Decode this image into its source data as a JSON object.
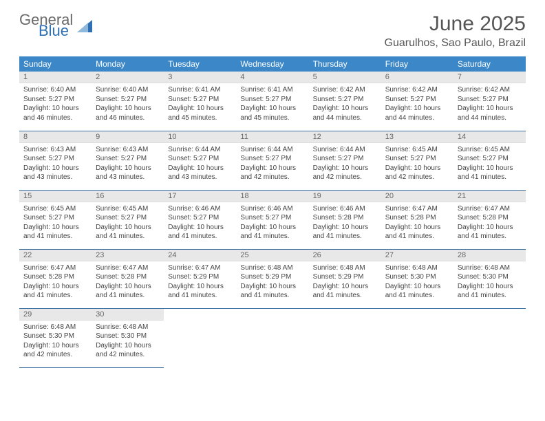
{
  "logo": {
    "text1": "General",
    "text2": "Blue"
  },
  "title": "June 2025",
  "location": "Guarulhos, Sao Paulo, Brazil",
  "colors": {
    "header_bg": "#3b87c8",
    "header_text": "#ffffff",
    "daynum_bg": "#e8e8e8",
    "border": "#3b6fa0",
    "logo_gray": "#6a6a6a",
    "logo_blue": "#2f6fb3"
  },
  "weekdays": [
    "Sunday",
    "Monday",
    "Tuesday",
    "Wednesday",
    "Thursday",
    "Friday",
    "Saturday"
  ],
  "labels": {
    "sunrise": "Sunrise:",
    "sunset": "Sunset:",
    "daylight_prefix": "Daylight:",
    "hours_word": "hours",
    "minutes_suffix": "minutes."
  },
  "days": [
    {
      "n": 1,
      "sunrise": "6:40 AM",
      "sunset": "5:27 PM",
      "dl_h": 10,
      "dl_m": 46
    },
    {
      "n": 2,
      "sunrise": "6:40 AM",
      "sunset": "5:27 PM",
      "dl_h": 10,
      "dl_m": 46
    },
    {
      "n": 3,
      "sunrise": "6:41 AM",
      "sunset": "5:27 PM",
      "dl_h": 10,
      "dl_m": 45
    },
    {
      "n": 4,
      "sunrise": "6:41 AM",
      "sunset": "5:27 PM",
      "dl_h": 10,
      "dl_m": 45
    },
    {
      "n": 5,
      "sunrise": "6:42 AM",
      "sunset": "5:27 PM",
      "dl_h": 10,
      "dl_m": 44
    },
    {
      "n": 6,
      "sunrise": "6:42 AM",
      "sunset": "5:27 PM",
      "dl_h": 10,
      "dl_m": 44
    },
    {
      "n": 7,
      "sunrise": "6:42 AM",
      "sunset": "5:27 PM",
      "dl_h": 10,
      "dl_m": 44
    },
    {
      "n": 8,
      "sunrise": "6:43 AM",
      "sunset": "5:27 PM",
      "dl_h": 10,
      "dl_m": 43
    },
    {
      "n": 9,
      "sunrise": "6:43 AM",
      "sunset": "5:27 PM",
      "dl_h": 10,
      "dl_m": 43
    },
    {
      "n": 10,
      "sunrise": "6:44 AM",
      "sunset": "5:27 PM",
      "dl_h": 10,
      "dl_m": 43
    },
    {
      "n": 11,
      "sunrise": "6:44 AM",
      "sunset": "5:27 PM",
      "dl_h": 10,
      "dl_m": 42
    },
    {
      "n": 12,
      "sunrise": "6:44 AM",
      "sunset": "5:27 PM",
      "dl_h": 10,
      "dl_m": 42
    },
    {
      "n": 13,
      "sunrise": "6:45 AM",
      "sunset": "5:27 PM",
      "dl_h": 10,
      "dl_m": 42
    },
    {
      "n": 14,
      "sunrise": "6:45 AM",
      "sunset": "5:27 PM",
      "dl_h": 10,
      "dl_m": 41
    },
    {
      "n": 15,
      "sunrise": "6:45 AM",
      "sunset": "5:27 PM",
      "dl_h": 10,
      "dl_m": 41
    },
    {
      "n": 16,
      "sunrise": "6:45 AM",
      "sunset": "5:27 PM",
      "dl_h": 10,
      "dl_m": 41
    },
    {
      "n": 17,
      "sunrise": "6:46 AM",
      "sunset": "5:27 PM",
      "dl_h": 10,
      "dl_m": 41
    },
    {
      "n": 18,
      "sunrise": "6:46 AM",
      "sunset": "5:27 PM",
      "dl_h": 10,
      "dl_m": 41
    },
    {
      "n": 19,
      "sunrise": "6:46 AM",
      "sunset": "5:28 PM",
      "dl_h": 10,
      "dl_m": 41
    },
    {
      "n": 20,
      "sunrise": "6:47 AM",
      "sunset": "5:28 PM",
      "dl_h": 10,
      "dl_m": 41
    },
    {
      "n": 21,
      "sunrise": "6:47 AM",
      "sunset": "5:28 PM",
      "dl_h": 10,
      "dl_m": 41
    },
    {
      "n": 22,
      "sunrise": "6:47 AM",
      "sunset": "5:28 PM",
      "dl_h": 10,
      "dl_m": 41
    },
    {
      "n": 23,
      "sunrise": "6:47 AM",
      "sunset": "5:28 PM",
      "dl_h": 10,
      "dl_m": 41
    },
    {
      "n": 24,
      "sunrise": "6:47 AM",
      "sunset": "5:29 PM",
      "dl_h": 10,
      "dl_m": 41
    },
    {
      "n": 25,
      "sunrise": "6:48 AM",
      "sunset": "5:29 PM",
      "dl_h": 10,
      "dl_m": 41
    },
    {
      "n": 26,
      "sunrise": "6:48 AM",
      "sunset": "5:29 PM",
      "dl_h": 10,
      "dl_m": 41
    },
    {
      "n": 27,
      "sunrise": "6:48 AM",
      "sunset": "5:30 PM",
      "dl_h": 10,
      "dl_m": 41
    },
    {
      "n": 28,
      "sunrise": "6:48 AM",
      "sunset": "5:30 PM",
      "dl_h": 10,
      "dl_m": 41
    },
    {
      "n": 29,
      "sunrise": "6:48 AM",
      "sunset": "5:30 PM",
      "dl_h": 10,
      "dl_m": 42
    },
    {
      "n": 30,
      "sunrise": "6:48 AM",
      "sunset": "5:30 PM",
      "dl_h": 10,
      "dl_m": 42
    }
  ],
  "grid": {
    "start_weekday": 0,
    "rows": 5,
    "cols": 7
  }
}
